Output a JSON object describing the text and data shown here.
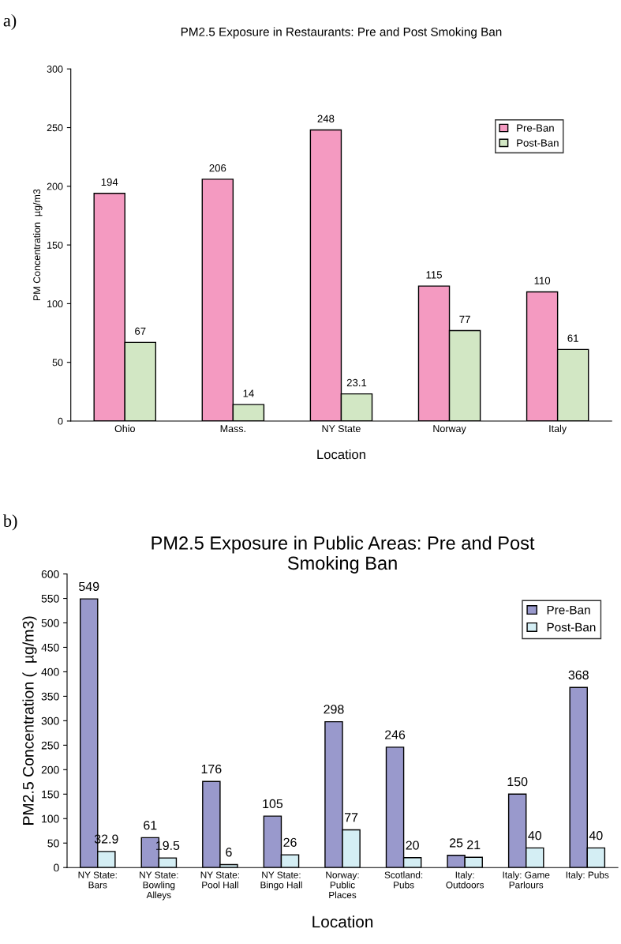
{
  "chart_data": [
    {
      "type": "bar",
      "title": "PM2.5 Exposure in Restaurants: Pre and Post Smoking Ban",
      "xlabel": "Location",
      "ylabel": "PM Concentration  µg/m3",
      "categories": [
        "Ohio",
        "Mass.",
        "NY State",
        "Norway",
        "Italy"
      ],
      "series": [
        {
          "name": "Pre-Ban",
          "color": "#f49ac1",
          "values": [
            194,
            206,
            248,
            115,
            110
          ]
        },
        {
          "name": "Post-Ban",
          "color": "#d2e7c4",
          "values": [
            67,
            14,
            23.1,
            77,
            61
          ]
        }
      ],
      "ylim": [
        0,
        300
      ],
      "yticks": [
        0,
        50,
        100,
        150,
        200,
        250,
        300
      ],
      "grid": false,
      "legend": "top right",
      "data_labels": true,
      "annotations": [
        "a)"
      ]
    },
    {
      "type": "bar",
      "title": "PM2.5 Exposure in Public Areas: Pre and Post\nSmoking Ban",
      "xlabel": "Location",
      "ylabel": "PM2.5 Concentration (  µg/m3)",
      "categories": [
        "NY State:\nBars",
        "NY State:\nBowling\nAlleys",
        "NY State:\nPool Hall",
        "NY State:\nBingo Hall",
        "Norway:\nPublic\nPlaces",
        "Scotland:\nPubs",
        "Italy:\nOutdoors",
        "Italy: Game\nParlours",
        "Italy: Pubs"
      ],
      "series": [
        {
          "name": "Pre-Ban",
          "color": "#9999cc",
          "values": [
            549,
            61,
            176,
            105,
            298,
            246,
            25,
            150,
            368
          ]
        },
        {
          "name": "Post-Ban",
          "color": "#d4eef4",
          "values": [
            32.9,
            19.5,
            6,
            26,
            77,
            20,
            21,
            40,
            40
          ]
        }
      ],
      "ylim": [
        0,
        600
      ],
      "yticks": [
        0,
        50,
        100,
        150,
        200,
        250,
        300,
        350,
        400,
        450,
        500,
        550,
        600
      ],
      "grid": false,
      "legend": "top right",
      "data_labels": true,
      "annotations": [
        "b)"
      ]
    }
  ]
}
